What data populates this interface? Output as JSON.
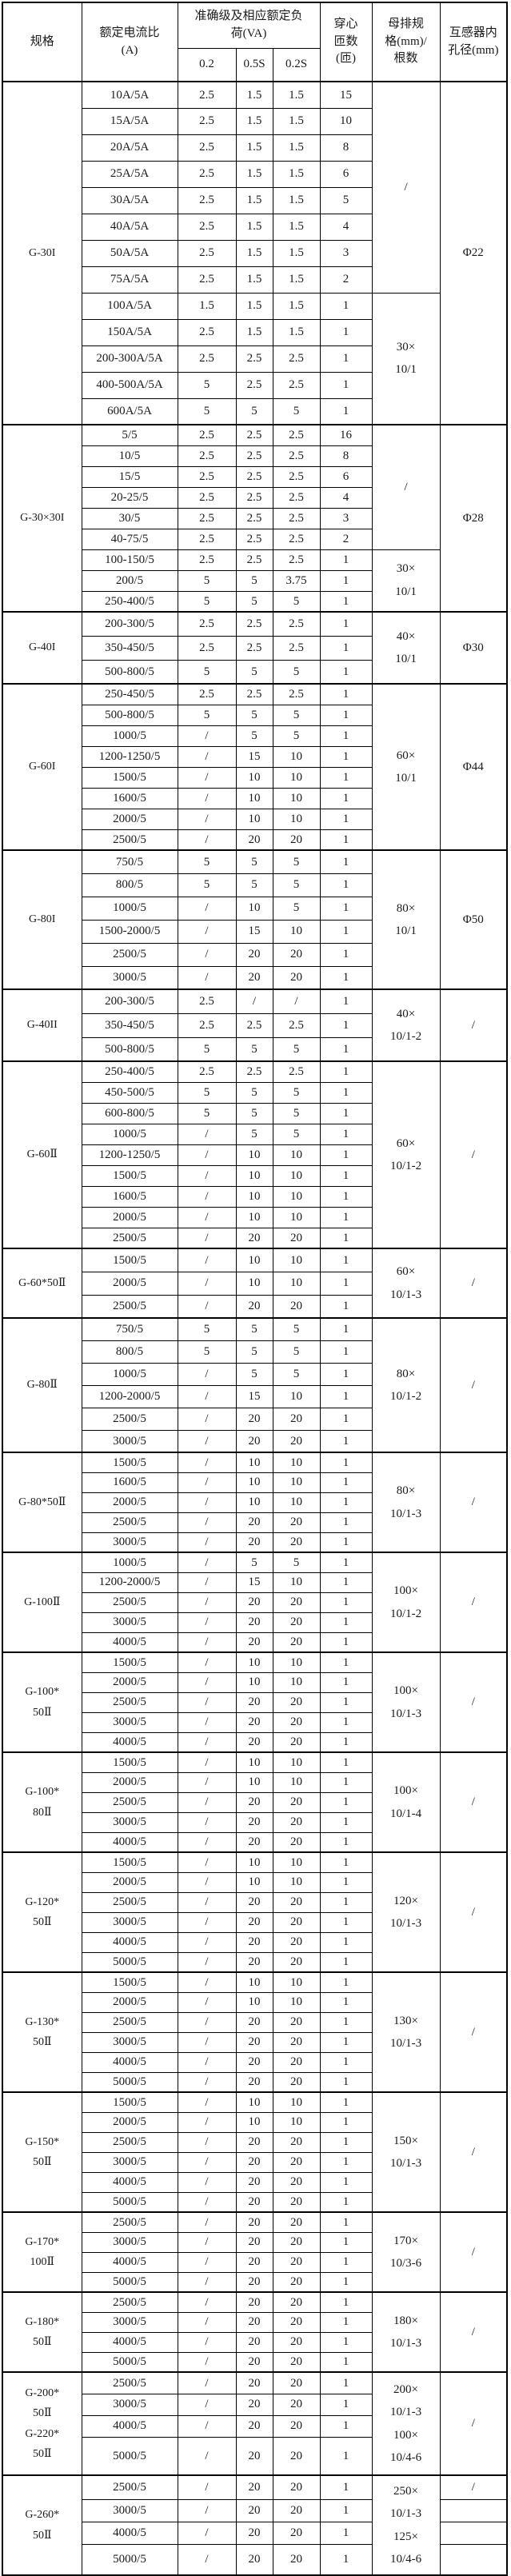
{
  "header": {
    "spec": "规格",
    "ratio_lines": [
      "额定电流比",
      "(A)"
    ],
    "accuracy_lines": [
      "准确级及相应额定负",
      "荷(VA)"
    ],
    "accuracy_sub": [
      "0.2",
      "0.5S",
      "0.2S"
    ],
    "turns_lines": [
      "穿心",
      "匝数",
      "(匝)"
    ],
    "busbar_lines": [
      "母排规",
      "格(mm)/",
      "根数"
    ],
    "hole_lines": [
      "互感器内",
      "孔径(mm)"
    ]
  },
  "sections": [
    {
      "spec": [
        "G-30I"
      ],
      "rh": 33,
      "rows": [
        [
          "10A/5A",
          "2.5",
          "1.5",
          "1.5",
          "15"
        ],
        [
          "15A/5A",
          "2.5",
          "1.5",
          "1.5",
          "10"
        ],
        [
          "20A/5A",
          "2.5",
          "1.5",
          "1.5",
          "8"
        ],
        [
          "25A/5A",
          "2.5",
          "1.5",
          "1.5",
          "6"
        ],
        [
          "30A/5A",
          "2.5",
          "1.5",
          "1.5",
          "5"
        ],
        [
          "40A/5A",
          "2.5",
          "1.5",
          "1.5",
          "4"
        ],
        [
          "50A/5A",
          "2.5",
          "1.5",
          "1.5",
          "3"
        ],
        [
          "75A/5A",
          "2.5",
          "1.5",
          "1.5",
          "2"
        ],
        [
          "100A/5A",
          "1.5",
          "1.5",
          "1.5",
          "1"
        ],
        [
          "150A/5A",
          "2.5",
          "1.5",
          "1.5",
          "1"
        ],
        [
          "200-300A/5A",
          "2.5",
          "2.5",
          "2.5",
          "1"
        ],
        [
          "400-500A/5A",
          "5",
          "2.5",
          "2.5",
          "1"
        ],
        [
          "600A/5A",
          "5",
          "5",
          "5",
          "1"
        ]
      ],
      "busbar": [
        {
          "lines": [
            "/"
          ],
          "span": 8
        },
        {
          "lines": [
            "30×",
            "10/1"
          ],
          "span": 5
        }
      ],
      "hole": [
        {
          "lines": [
            "Φ22"
          ],
          "span": 13
        }
      ]
    },
    {
      "spec": [
        "G-30×30I"
      ],
      "rh": 26,
      "rows": [
        [
          "5/5",
          "2.5",
          "2.5",
          "2.5",
          "16"
        ],
        [
          "10/5",
          "2.5",
          "2.5",
          "2.5",
          "8"
        ],
        [
          "15/5",
          "2.5",
          "2.5",
          "2.5",
          "6"
        ],
        [
          "20-25/5",
          "2.5",
          "2.5",
          "2.5",
          "4"
        ],
        [
          "30/5",
          "2.5",
          "2.5",
          "2.5",
          "3"
        ],
        [
          "40-75/5",
          "2.5",
          "2.5",
          "2.5",
          "2"
        ],
        [
          "100-150/5",
          "2.5",
          "2.5",
          "2.5",
          "1"
        ],
        [
          "200/5",
          "5",
          "5",
          "3.75",
          "1"
        ],
        [
          "250-400/5",
          "5",
          "5",
          "5",
          "1"
        ]
      ],
      "busbar": [
        {
          "lines": [
            "/"
          ],
          "span": 6
        },
        {
          "lines": [
            "30×",
            "10/1"
          ],
          "span": 3
        }
      ],
      "hole": [
        {
          "lines": [
            "Φ28"
          ],
          "span": 9
        }
      ]
    },
    {
      "spec": [
        "G-40I"
      ],
      "rh": 30,
      "rows": [
        [
          "200-300/5",
          "2.5",
          "2.5",
          "2.5",
          "1"
        ],
        [
          "350-450/5",
          "2.5",
          "2.5",
          "2.5",
          "1"
        ],
        [
          "500-800/5",
          "5",
          "5",
          "5",
          "1"
        ]
      ],
      "busbar": [
        {
          "lines": [
            "40×",
            "10/1"
          ],
          "span": 3
        }
      ],
      "hole": [
        {
          "lines": [
            "Φ30"
          ],
          "span": 3
        }
      ]
    },
    {
      "spec": [
        "G-60I"
      ],
      "rh": 26,
      "rows": [
        [
          "250-450/5",
          "2.5",
          "2.5",
          "2.5",
          "1"
        ],
        [
          "500-800/5",
          "5",
          "5",
          "5",
          "1"
        ],
        [
          "1000/5",
          "/",
          "5",
          "5",
          "1"
        ],
        [
          "1200-1250/5",
          "/",
          "15",
          "10",
          "1"
        ],
        [
          "1500/5",
          "/",
          "10",
          "10",
          "1"
        ],
        [
          "1600/5",
          "/",
          "10",
          "10",
          "1"
        ],
        [
          "2000/5",
          "/",
          "10",
          "10",
          "1"
        ],
        [
          "2500/5",
          "/",
          "20",
          "20",
          "1"
        ]
      ],
      "busbar": [
        {
          "lines": [
            "60×",
            "10/1"
          ],
          "span": 8
        }
      ],
      "hole": [
        {
          "lines": [
            "Φ44"
          ],
          "span": 8
        }
      ]
    },
    {
      "spec": [
        "G-80I"
      ],
      "rh": 29,
      "rows": [
        [
          "750/5",
          "5",
          "5",
          "5",
          "1"
        ],
        [
          "800/5",
          "5",
          "5",
          "5",
          "1"
        ],
        [
          "1000/5",
          "/",
          "10",
          "5",
          "1"
        ],
        [
          "1500-2000/5",
          "/",
          "15",
          "10",
          "1"
        ],
        [
          "2500/5",
          "/",
          "20",
          "20",
          "1"
        ],
        [
          "3000/5",
          "/",
          "20",
          "20",
          "1"
        ]
      ],
      "busbar": [
        {
          "lines": [
            "80×",
            "10/1"
          ],
          "span": 6
        }
      ],
      "hole": [
        {
          "lines": [
            "Φ50"
          ],
          "span": 6
        }
      ]
    },
    {
      "spec": [
        "G-40II"
      ],
      "rh": 30,
      "rows": [
        [
          "200-300/5",
          "2.5",
          "/",
          "/",
          "1"
        ],
        [
          "350-450/5",
          "2.5",
          "2.5",
          "2.5",
          "1"
        ],
        [
          "500-800/5",
          "5",
          "5",
          "5",
          "1"
        ]
      ],
      "busbar": [
        {
          "lines": [
            "40×",
            "10/1-2"
          ],
          "span": 3
        }
      ],
      "hole": [
        {
          "lines": [
            "/"
          ],
          "span": 3
        }
      ]
    },
    {
      "spec": [
        "G-60Ⅱ"
      ],
      "rh": 26,
      "rows": [
        [
          "250-400/5",
          "2.5",
          "2.5",
          "2.5",
          "1"
        ],
        [
          "450-500/5",
          "5",
          "5",
          "5",
          "1"
        ],
        [
          "600-800/5",
          "5",
          "5",
          "5",
          "1"
        ],
        [
          "1000/5",
          "/",
          "5",
          "5",
          "1"
        ],
        [
          "1200-1250/5",
          "/",
          "10",
          "10",
          "1"
        ],
        [
          "1500/5",
          "/",
          "10",
          "10",
          "1"
        ],
        [
          "1600/5",
          "/",
          "10",
          "10",
          "1"
        ],
        [
          "2000/5",
          "/",
          "10",
          "10",
          "1"
        ],
        [
          "2500/5",
          "/",
          "20",
          "20",
          "1"
        ]
      ],
      "busbar": [
        {
          "lines": [
            "60×",
            "10/1-2"
          ],
          "span": 9
        }
      ],
      "hole": [
        {
          "lines": [
            "/"
          ],
          "span": 9
        }
      ]
    },
    {
      "spec": [
        "G-60*50Ⅱ"
      ],
      "rh": 29,
      "rows": [
        [
          "1500/5",
          "/",
          "10",
          "10",
          "1"
        ],
        [
          "2000/5",
          "/",
          "10",
          "10",
          "1"
        ],
        [
          "2500/5",
          "/",
          "20",
          "20",
          "1"
        ]
      ],
      "busbar": [
        {
          "lines": [
            "60×",
            "10/1-3"
          ],
          "span": 3
        }
      ],
      "hole": [
        {
          "lines": [
            "/"
          ],
          "span": 3
        }
      ]
    },
    {
      "spec": [
        "G-80Ⅱ"
      ],
      "rh": 28,
      "rows": [
        [
          "750/5",
          "5",
          "5",
          "5",
          "1"
        ],
        [
          "800/5",
          "5",
          "5",
          "5",
          "1"
        ],
        [
          "1000/5",
          "/",
          "5",
          "5",
          "1"
        ],
        [
          "1200-2000/5",
          "/",
          "15",
          "10",
          "1"
        ],
        [
          "2500/5",
          "/",
          "20",
          "20",
          "1"
        ],
        [
          "3000/5",
          "/",
          "20",
          "20",
          "1"
        ]
      ],
      "busbar": [
        {
          "lines": [
            "80×",
            "10/1-2"
          ],
          "span": 6
        }
      ],
      "hole": [
        {
          "lines": [
            "/"
          ],
          "span": 6
        }
      ]
    },
    {
      "spec": [
        "G-80*50Ⅱ"
      ],
      "rh": 25,
      "rows": [
        [
          "1500/5",
          "/",
          "10",
          "10",
          "1"
        ],
        [
          "1600/5",
          "/",
          "10",
          "10",
          "1"
        ],
        [
          "2000/5",
          "/",
          "10",
          "10",
          "1"
        ],
        [
          "2500/5",
          "/",
          "20",
          "20",
          "1"
        ],
        [
          "3000/5",
          "/",
          "20",
          "20",
          "1"
        ]
      ],
      "busbar": [
        {
          "lines": [
            "80×",
            "10/1-3"
          ],
          "span": 5
        }
      ],
      "hole": [
        {
          "lines": [
            "/"
          ],
          "span": 5
        }
      ]
    },
    {
      "spec": [
        "G-100Ⅱ"
      ],
      "rh": 25,
      "rows": [
        [
          "1000/5",
          "/",
          "5",
          "5",
          "1"
        ],
        [
          "1200-2000/5",
          "/",
          "15",
          "10",
          "1"
        ],
        [
          "2500/5",
          "/",
          "20",
          "20",
          "1"
        ],
        [
          "3000/5",
          "/",
          "20",
          "20",
          "1"
        ],
        [
          "4000/5",
          "/",
          "20",
          "20",
          "1"
        ]
      ],
      "busbar": [
        {
          "lines": [
            "100×",
            "10/1-2"
          ],
          "span": 5
        }
      ],
      "hole": [
        {
          "lines": [
            "/"
          ],
          "span": 5
        }
      ]
    },
    {
      "spec": [
        "G-100*",
        "50Ⅱ"
      ],
      "rh": 25,
      "rows": [
        [
          "1500/5",
          "/",
          "10",
          "10",
          "1"
        ],
        [
          "2000/5",
          "/",
          "10",
          "10",
          "1"
        ],
        [
          "2500/5",
          "/",
          "20",
          "20",
          "1"
        ],
        [
          "3000/5",
          "/",
          "20",
          "20",
          "1"
        ],
        [
          "4000/5",
          "/",
          "20",
          "20",
          "1"
        ]
      ],
      "busbar": [
        {
          "lines": [
            "100×",
            "10/1-3"
          ],
          "span": 5
        }
      ],
      "hole": [
        {
          "lines": [
            "/"
          ],
          "span": 5
        }
      ]
    },
    {
      "spec": [
        "G-100*",
        "80Ⅱ"
      ],
      "rh": 25,
      "rows": [
        [
          "1500/5",
          "/",
          "10",
          "10",
          "1"
        ],
        [
          "2000/5",
          "/",
          "10",
          "10",
          "1"
        ],
        [
          "2500/5",
          "/",
          "20",
          "20",
          "1"
        ],
        [
          "3000/5",
          "/",
          "20",
          "20",
          "1"
        ],
        [
          "4000/5",
          "/",
          "20",
          "20",
          "1"
        ]
      ],
      "busbar": [
        {
          "lines": [
            "100×",
            "10/1-4"
          ],
          "span": 5
        }
      ],
      "hole": [
        {
          "lines": [
            "/"
          ],
          "span": 5
        }
      ]
    },
    {
      "spec": [
        "G-120*",
        "50Ⅱ"
      ],
      "rh": 25,
      "rows": [
        [
          "1500/5",
          "/",
          "10",
          "10",
          "1"
        ],
        [
          "2000/5",
          "/",
          "10",
          "10",
          "1"
        ],
        [
          "2500/5",
          "/",
          "20",
          "20",
          "1"
        ],
        [
          "3000/5",
          "/",
          "20",
          "20",
          "1"
        ],
        [
          "4000/5",
          "/",
          "20",
          "20",
          "1"
        ],
        [
          "5000/5",
          "/",
          "20",
          "20",
          "1"
        ]
      ],
      "busbar": [
        {
          "lines": [
            "120×",
            "10/1-3"
          ],
          "span": 6
        }
      ],
      "hole": [
        {
          "lines": [
            "/"
          ],
          "span": 6
        }
      ]
    },
    {
      "spec": [
        "G-130*",
        "50Ⅱ"
      ],
      "rh": 25,
      "rows": [
        [
          "1500/5",
          "/",
          "10",
          "10",
          "1"
        ],
        [
          "2000/5",
          "/",
          "10",
          "10",
          "1"
        ],
        [
          "2500/5",
          "/",
          "20",
          "20",
          "1"
        ],
        [
          "3000/5",
          "/",
          "20",
          "20",
          "1"
        ],
        [
          "4000/5",
          "/",
          "20",
          "20",
          "1"
        ],
        [
          "5000/5",
          "/",
          "20",
          "20",
          "1"
        ]
      ],
      "busbar": [
        {
          "lines": [
            "130×",
            "10/1-3"
          ],
          "span": 6
        }
      ],
      "hole": [
        {
          "lines": [
            "/"
          ],
          "span": 6
        }
      ]
    },
    {
      "spec": [
        "G-150*",
        "50Ⅱ"
      ],
      "rh": 25,
      "rows": [
        [
          "1500/5",
          "/",
          "10",
          "10",
          "1"
        ],
        [
          "2000/5",
          "/",
          "10",
          "10",
          "1"
        ],
        [
          "2500/5",
          "/",
          "20",
          "20",
          "1"
        ],
        [
          "3000/5",
          "/",
          "20",
          "20",
          "1"
        ],
        [
          "4000/5",
          "/",
          "20",
          "20",
          "1"
        ],
        [
          "5000/5",
          "/",
          "20",
          "20",
          "1"
        ]
      ],
      "busbar": [
        {
          "lines": [
            "150×",
            "10/1-3"
          ],
          "span": 6
        }
      ],
      "hole": [
        {
          "lines": [
            "/"
          ],
          "span": 6
        }
      ]
    },
    {
      "spec": [
        "G-170*",
        "100Ⅱ"
      ],
      "rh": 25,
      "rows": [
        [
          "2500/5",
          "/",
          "20",
          "20",
          "1"
        ],
        [
          "3000/5",
          "/",
          "20",
          "20",
          "1"
        ],
        [
          "4000/5",
          "/",
          "20",
          "20",
          "1"
        ],
        [
          "5000/5",
          "/",
          "20",
          "20",
          "1"
        ]
      ],
      "busbar": [
        {
          "lines": [
            "170×",
            "10/3-6"
          ],
          "span": 4
        }
      ],
      "hole": [
        {
          "lines": [
            "/"
          ],
          "span": 4
        }
      ]
    },
    {
      "spec": [
        "G-180*",
        "50Ⅱ"
      ],
      "rh": 25,
      "rows": [
        [
          "2500/5",
          "/",
          "20",
          "20",
          "1"
        ],
        [
          "3000/5",
          "/",
          "20",
          "20",
          "1"
        ],
        [
          "4000/5",
          "/",
          "20",
          "20",
          "1"
        ],
        [
          "5000/5",
          "/",
          "20",
          "20",
          "1"
        ]
      ],
      "busbar": [
        {
          "lines": [
            "180×",
            "10/1-3"
          ],
          "span": 4
        }
      ],
      "hole": [
        {
          "lines": [
            "/"
          ],
          "span": 4
        }
      ]
    },
    {
      "spec": [
        "G-200*",
        "50Ⅱ",
        "G-220*",
        "50Ⅱ"
      ],
      "rh": 27,
      "last_rh": 48,
      "rows": [
        [
          "2500/5",
          "/",
          "20",
          "20",
          "1"
        ],
        [
          "3000/5",
          "/",
          "20",
          "20",
          "1"
        ],
        [
          "4000/5",
          "/",
          "20",
          "20",
          "1"
        ],
        [
          "5000/5",
          "/",
          "20",
          "20",
          "1"
        ]
      ],
      "busbar": [
        {
          "lines": [
            "200×",
            "10/1-3",
            "100×",
            "10/4-6"
          ],
          "span": 4
        }
      ],
      "hole": [
        {
          "lines": [
            "/"
          ],
          "span": 4
        }
      ]
    },
    {
      "spec": [
        "G-260*",
        "50Ⅱ"
      ],
      "rh": 28,
      "last_rh": 39,
      "rows": [
        [
          "2500/5",
          "/",
          "20",
          "20",
          "1"
        ],
        [
          "3000/5",
          "/",
          "20",
          "20",
          "1"
        ],
        [
          "4000/5",
          "/",
          "20",
          "20",
          "1"
        ],
        [
          "5000/5",
          "/",
          "20",
          "20",
          "1"
        ]
      ],
      "busbar": [
        {
          "lines": [
            "250×",
            "10/1-3",
            "125×",
            "10/4-6"
          ],
          "span": 4
        }
      ],
      "hole": [
        {
          "lines": [
            "/"
          ],
          "span": 1
        },
        {
          "lines": [
            ""
          ],
          "span": 1
        },
        {
          "lines": [
            ""
          ],
          "span": 1
        },
        {
          "lines": [
            ""
          ],
          "span": 1
        }
      ]
    }
  ]
}
